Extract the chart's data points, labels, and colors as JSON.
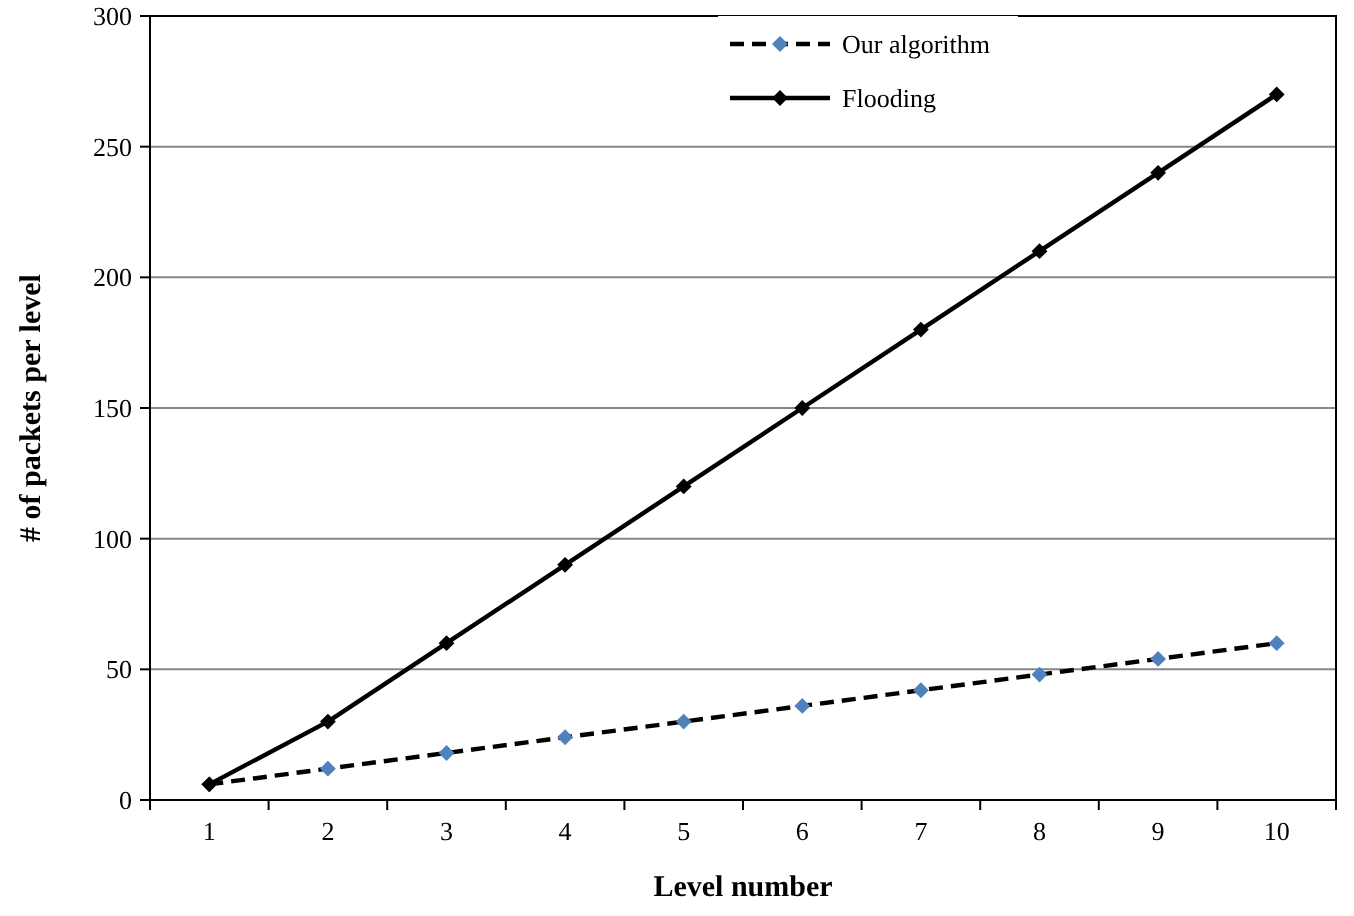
{
  "chart_data": {
    "type": "line",
    "xlabel": "Level number",
    "ylabel": "# of packets per level",
    "categories": [
      "1",
      "2",
      "3",
      "4",
      "5",
      "6",
      "7",
      "8",
      "9",
      "10"
    ],
    "series": [
      {
        "name": "Our algorithm",
        "color": "#4f81bd",
        "line_style": "dashed",
        "values": [
          6,
          12,
          18,
          24,
          30,
          36,
          42,
          48,
          54,
          60
        ]
      },
      {
        "name": "Flooding",
        "color": "#000000",
        "line_style": "solid",
        "values": [
          6,
          30,
          60,
          90,
          120,
          150,
          180,
          210,
          240,
          270
        ]
      }
    ],
    "ylim": [
      0,
      300
    ],
    "yticks": [
      0,
      50,
      100,
      150,
      200,
      250,
      300
    ],
    "grid": "y",
    "legend": "top right",
    "marker": "diamond"
  }
}
